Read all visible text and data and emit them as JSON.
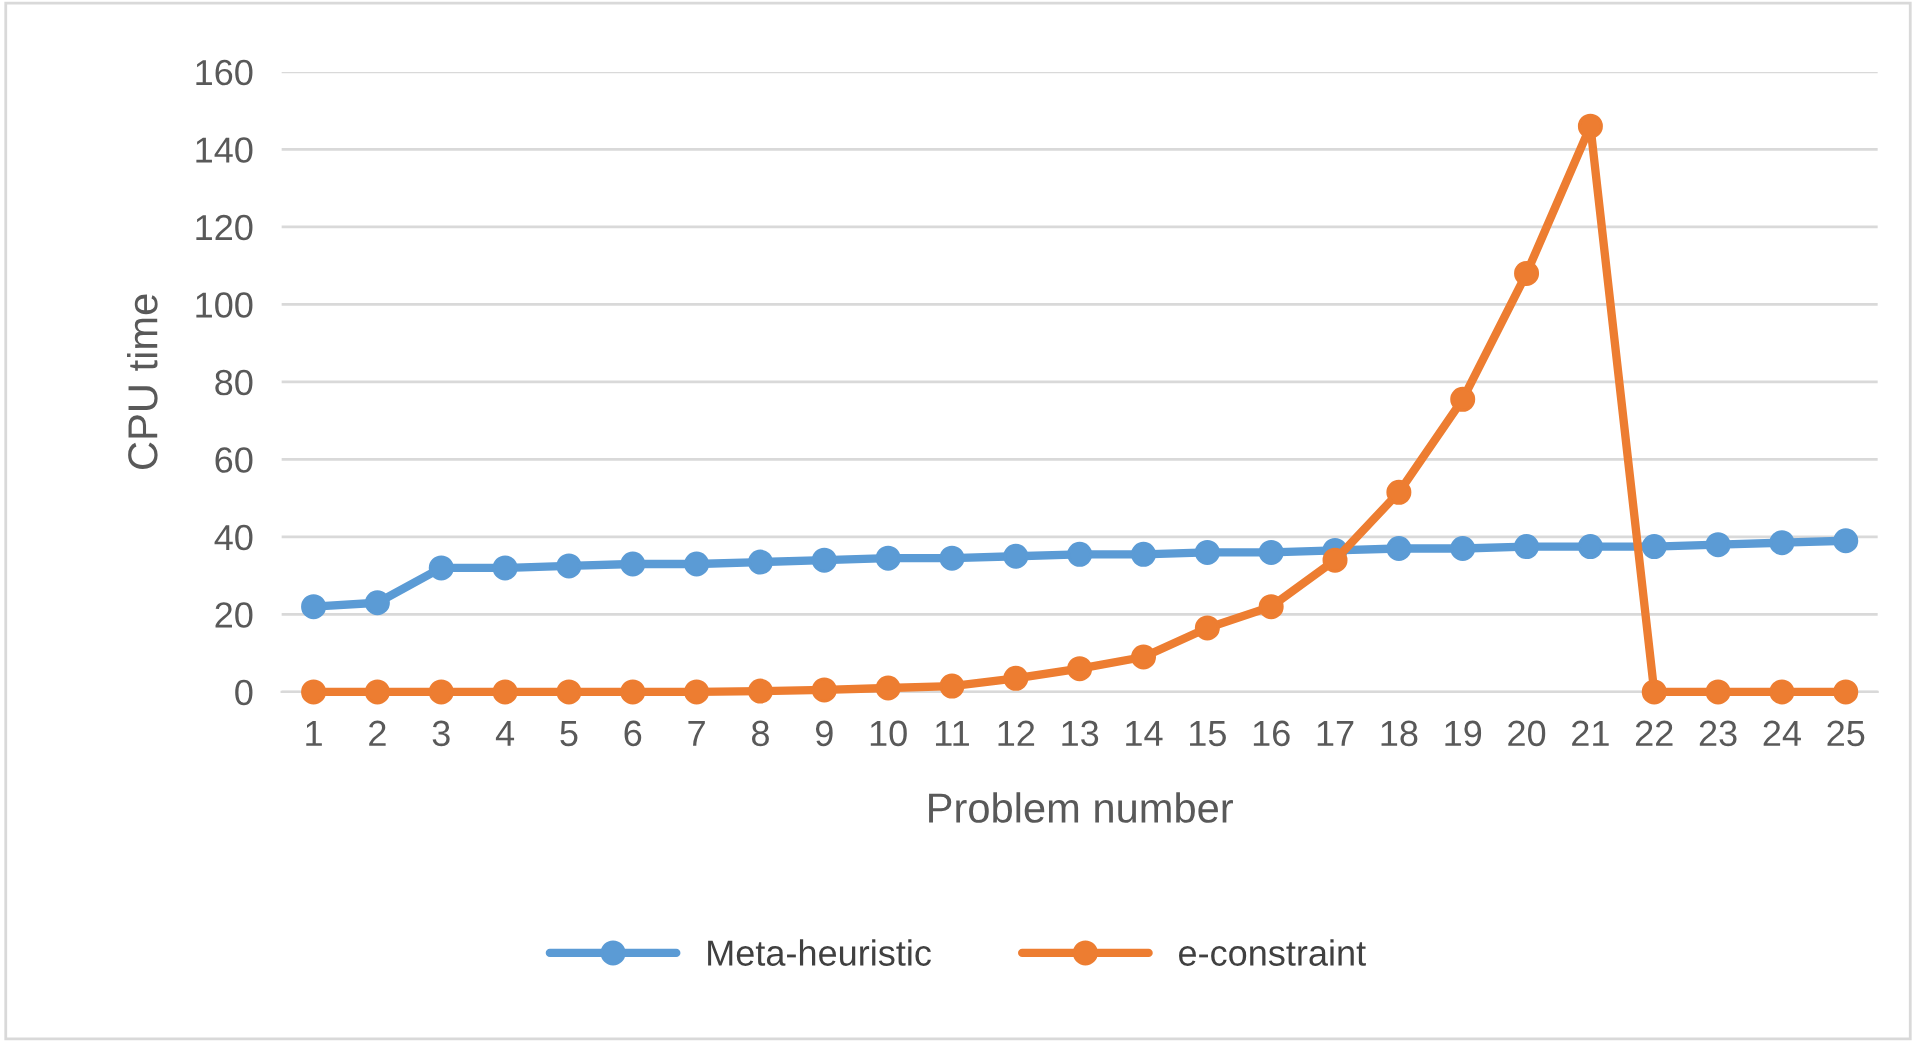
{
  "chart_data": {
    "type": "line",
    "xlabel": "Problem number",
    "ylabel": "CPU time",
    "categories": [
      "1",
      "2",
      "3",
      "4",
      "5",
      "6",
      "7",
      "8",
      "9",
      "10",
      "11",
      "12",
      "13",
      "14",
      "15",
      "16",
      "17",
      "18",
      "19",
      "20",
      "21",
      "22",
      "23",
      "24",
      "25"
    ],
    "series": [
      {
        "name": "Meta-heuristic",
        "color": "#5b9bd5",
        "values": [
          22,
          23,
          32,
          32,
          32.5,
          33,
          33,
          33.5,
          34,
          34.5,
          34.5,
          35,
          35.5,
          35.5,
          36,
          36,
          36.5,
          37,
          37,
          37.5,
          37.5,
          37.5,
          38,
          38.5,
          39
        ]
      },
      {
        "name": "e-constraint",
        "color": "#ed7d31",
        "values": [
          0,
          0,
          0,
          0,
          0,
          0,
          0,
          0.2,
          0.5,
          1,
          1.5,
          3.5,
          6,
          9,
          16.5,
          22,
          34,
          51.5,
          75.5,
          108,
          146,
          0,
          0,
          0,
          0
        ]
      }
    ],
    "ylim": [
      0,
      160
    ],
    "yticks": [
      0,
      20,
      40,
      60,
      80,
      100,
      120,
      140,
      160
    ],
    "grid": "y",
    "legend": "bottom",
    "marker": "circle",
    "line_style": "solid"
  }
}
